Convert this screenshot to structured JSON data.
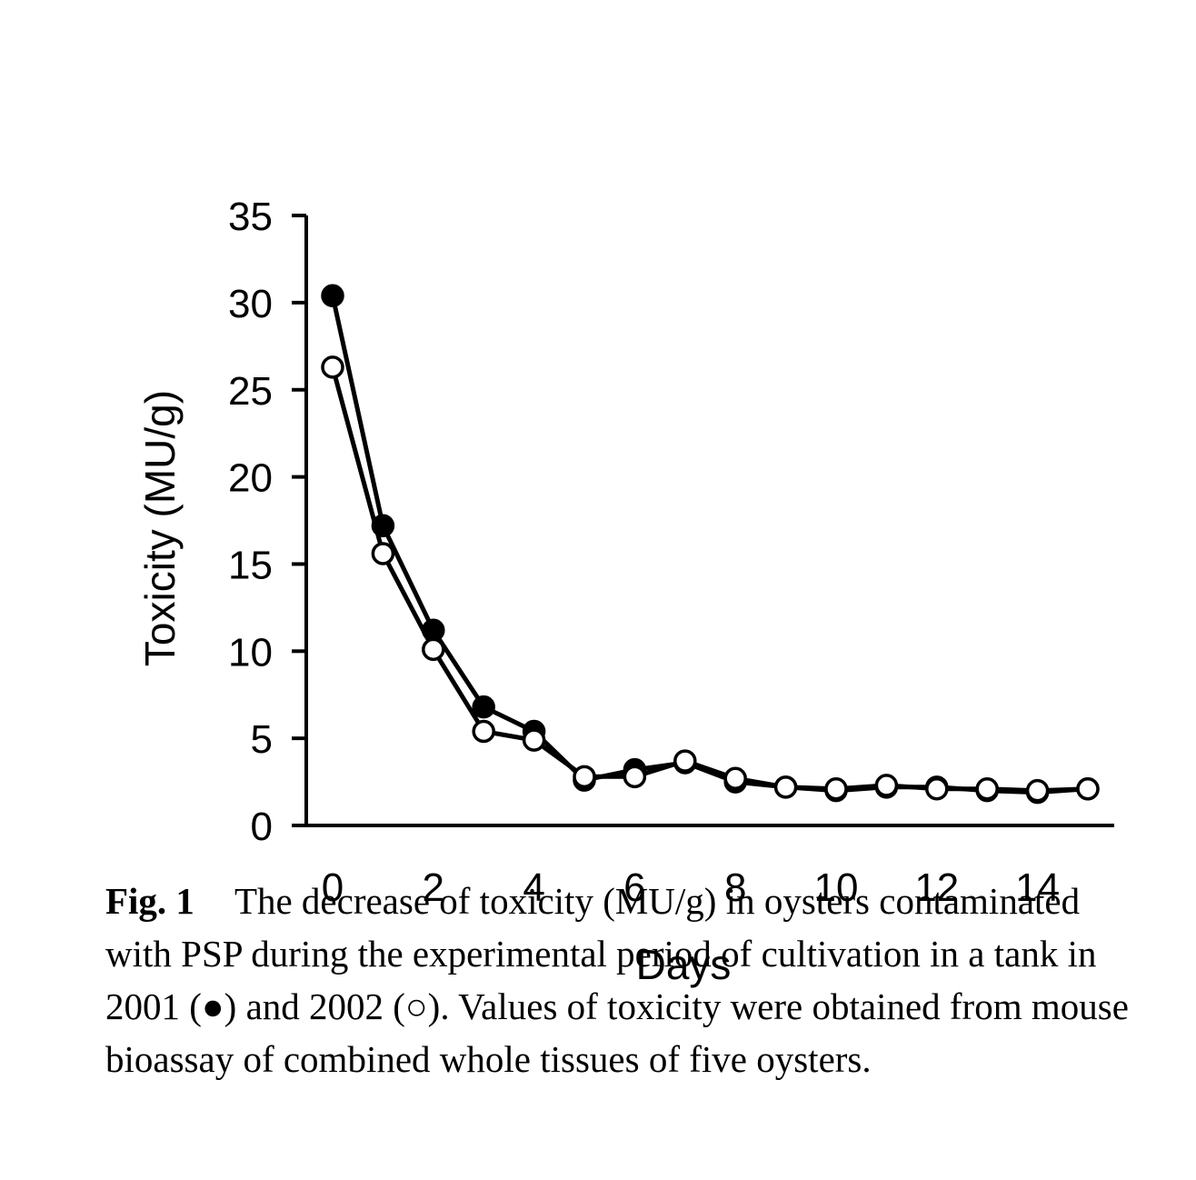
{
  "chart_data": {
    "type": "line",
    "xlabel": "Days",
    "ylabel": "Toxicity (MU/g)",
    "xlim": [
      0,
      15
    ],
    "ylim": [
      0,
      35
    ],
    "xticks": [
      "0",
      "2",
      "4",
      "6",
      "8",
      "10",
      "12",
      "14"
    ],
    "yticks": [
      "0",
      "5",
      "10",
      "15",
      "20",
      "25",
      "30",
      "35"
    ],
    "x": [
      0,
      1,
      2,
      3,
      4,
      5,
      6,
      7,
      8,
      9,
      10,
      11,
      12,
      13,
      14,
      15
    ],
    "series": [
      {
        "marker": "filled-circle",
        "values": [
          30.4,
          17.2,
          11.2,
          6.8,
          5.4,
          2.6,
          3.2,
          3.6,
          2.5,
          2.2,
          2.0,
          2.2,
          2.2,
          2.0,
          1.9,
          2.1
        ]
      },
      {
        "marker": "open-circle",
        "values": [
          26.3,
          15.6,
          10.1,
          5.4,
          4.9,
          2.8,
          2.8,
          3.7,
          2.7,
          2.2,
          2.1,
          2.3,
          2.1,
          2.1,
          2.0,
          2.1
        ]
      }
    ],
    "grid": false
  },
  "caption": {
    "label": "Fig. 1",
    "text": "The decrease of toxicity (MU/g) in oysters contaminated with PSP during the experimental period of cultivation in a tank in 2001 (●) and 2002 (○). Values of toxicity were obtained from mouse bioassay of combined whole tissues of five oysters."
  }
}
